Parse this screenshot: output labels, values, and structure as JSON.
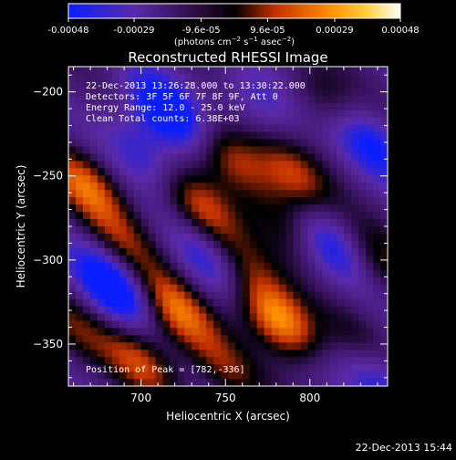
{
  "chart_data": {
    "type": "heatmap",
    "title": "Reconstructed RHESSI Image",
    "xlabel": "Heliocentric X (arcsec)",
    "ylabel": "Heliocentric Y (arcsec)",
    "xlim": [
      657,
      846
    ],
    "ylim": [
      -375,
      -185
    ],
    "x_ticks": [
      700,
      750,
      800
    ],
    "y_ticks": [
      -200,
      -250,
      -300,
      -350
    ],
    "colorbar": {
      "ticks": [
        "-0.00048",
        "-0.00029",
        "-9.6e-05",
        "9.6e-05",
        "0.00029",
        "0.00048"
      ],
      "tick_values": [
        -0.00048,
        -0.00029,
        -9.6e-05,
        9.6e-05,
        0.00029,
        0.00048
      ],
      "range": [
        -0.00048,
        0.00048
      ],
      "colors": [
        "#0a1eff",
        "#5a2aa8",
        "#2a0a3a",
        "#000000",
        "#c03000",
        "#ff8a00",
        "#ffd040",
        "#ffffff"
      ]
    },
    "annotations": [
      "22-Dec-2013 13:26:28.000 to 13:30:22.000",
      "Detectors: 3F 5F 6F 7F 8F 9F, Att 0",
      "Energy Range: 12.0 - 25.0 keV",
      "Clean    Total counts: 6.38E+03"
    ],
    "peak_label": "Position of Peak = [782,-336]",
    "peak": [
      782,
      -336
    ],
    "bright_sources": [
      {
        "x": 667,
        "y": -255,
        "v": 0.00035
      },
      {
        "x": 735,
        "y": -270,
        "v": 0.0003
      },
      {
        "x": 755,
        "y": -240,
        "v": 0.00032
      },
      {
        "x": 720,
        "y": -330,
        "v": 0.00038
      },
      {
        "x": 782,
        "y": -336,
        "v": 0.00048
      },
      {
        "x": 700,
        "y": -360,
        "v": 0.0003
      },
      {
        "x": 790,
        "y": -280,
        "v": 0.00025
      },
      {
        "x": 810,
        "y": -205,
        "v": 0.0002
      },
      {
        "x": 790,
        "y": -250,
        "v": 0.00028
      },
      {
        "x": 840,
        "y": -300,
        "v": 0.0002
      },
      {
        "x": 690,
        "y": -290,
        "v": 0.0002
      },
      {
        "x": 760,
        "y": -305,
        "v": 0.00022
      },
      {
        "x": 660,
        "y": -340,
        "v": 0.00018
      },
      {
        "x": 750,
        "y": -365,
        "v": 0.00022
      },
      {
        "x": 830,
        "y": -350,
        "v": 0.00015
      }
    ],
    "dark_sources": [
      {
        "x": 715,
        "y": -212,
        "v": -0.00042
      },
      {
        "x": 683,
        "y": -316,
        "v": -0.00044
      },
      {
        "x": 835,
        "y": -230,
        "v": -0.0003
      },
      {
        "x": 810,
        "y": -290,
        "v": -0.00032
      },
      {
        "x": 740,
        "y": -300,
        "v": -0.00025
      },
      {
        "x": 840,
        "y": -370,
        "v": -0.00028
      },
      {
        "x": 700,
        "y": -235,
        "v": -0.0002
      },
      {
        "x": 770,
        "y": -205,
        "v": -0.0002
      }
    ]
  },
  "footer_timestamp": "22-Dec-2013 15:44"
}
